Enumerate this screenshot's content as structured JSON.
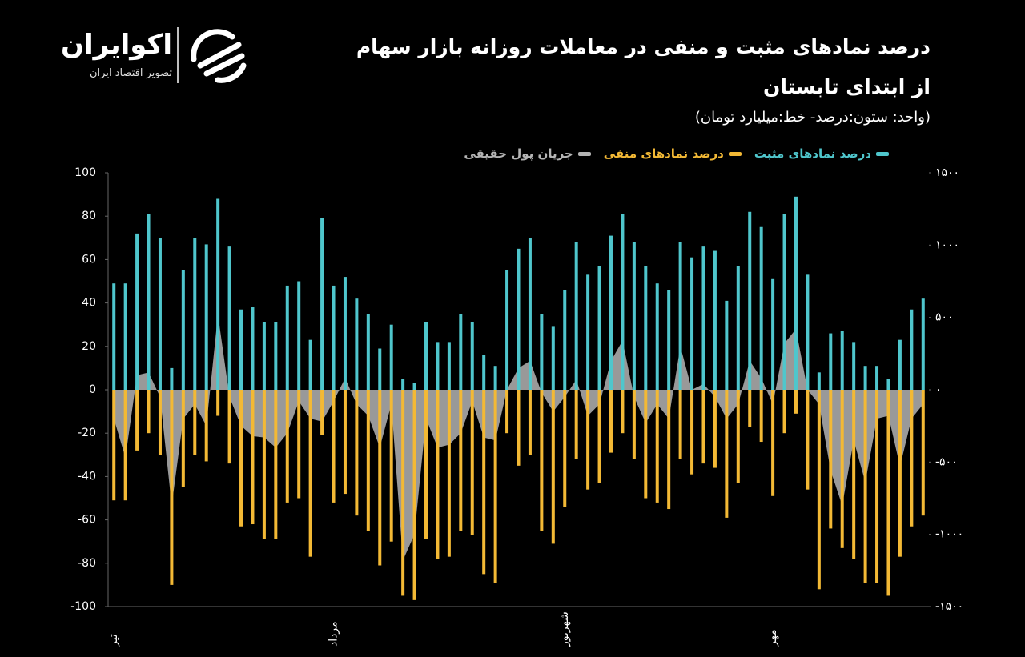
{
  "logo": {
    "name": "اکوایران",
    "tagline": "تصویر اقتصاد ایران"
  },
  "chart_data": {
    "type": "bar",
    "title": [
      "درصد نمادهای مثبت و منفی در معاملات روزانه بازار سهام",
      "از ابتدای تابستان"
    ],
    "subtitle": "(واحد: ستون:درصد- خط:میلیارد تومان)",
    "categories": [
      "تیر",
      null,
      null,
      null,
      null,
      null,
      null,
      null,
      null,
      null,
      null,
      null,
      null,
      null,
      null,
      null,
      null,
      null,
      null,
      "مرداد",
      null,
      null,
      null,
      null,
      null,
      null,
      null,
      null,
      null,
      null,
      null,
      null,
      null,
      null,
      null,
      null,
      null,
      null,
      null,
      "شهریور",
      null,
      null,
      null,
      null,
      null,
      null,
      null,
      null,
      null,
      null,
      null,
      null,
      null,
      null,
      null,
      null,
      null,
      "مهر",
      null,
      null,
      null,
      null,
      null,
      null,
      null,
      null,
      null,
      null,
      null,
      null,
      null
    ],
    "series": [
      {
        "name": "درصد نمادهای مثبت",
        "color": "#4fc6cc",
        "values": [
          49,
          49,
          72,
          81,
          70,
          10,
          55,
          70,
          67,
          88,
          66,
          37,
          38,
          31,
          31,
          48,
          50,
          23,
          79,
          48,
          52,
          42,
          35,
          19,
          30,
          5,
          3,
          31,
          22,
          22,
          35,
          31,
          16,
          11,
          55,
          65,
          70,
          35,
          29,
          46,
          68,
          53,
          57,
          71,
          81,
          68,
          57,
          49,
          46,
          68,
          61,
          66,
          64,
          41,
          57,
          82,
          75,
          51,
          81,
          89,
          53,
          8,
          26,
          27,
          22,
          11,
          11,
          5,
          23,
          37,
          42
        ]
      },
      {
        "name": "درصد نمادهای منفی",
        "color": "#f3b935",
        "values": [
          -51,
          -51,
          -28,
          -20,
          -30,
          -90,
          -45,
          -30,
          -33,
          -12,
          -34,
          -63,
          -62,
          -69,
          -69,
          -52,
          -50,
          -77,
          -21,
          -52,
          -48,
          -58,
          -65,
          -81,
          -70,
          -95,
          -97,
          -69,
          -78,
          -77,
          -65,
          -67,
          -85,
          -89,
          -20,
          -35,
          -30,
          -65,
          -71,
          -54,
          -32,
          -46,
          -43,
          -29,
          -20,
          -32,
          -50,
          -52,
          -55,
          -32,
          -39,
          -34,
          -36,
          -59,
          -43,
          -17,
          -24,
          -49,
          -20,
          -11,
          -46,
          -92,
          -64,
          -73,
          -78,
          -89,
          -89,
          -95,
          -77,
          -63,
          -58
        ]
      },
      {
        "name": "جریان پول حقیقی",
        "color": "#b4b4b4",
        "axis": "y2",
        "values": [
          -200,
          -470,
          100,
          120,
          -50,
          -800,
          -200,
          -100,
          -250,
          520,
          -50,
          -250,
          -320,
          -330,
          -400,
          -300,
          -80,
          -200,
          -220,
          -80,
          80,
          -100,
          -180,
          -400,
          -100,
          -1180,
          -1000,
          -200,
          -400,
          -380,
          -300,
          -80,
          -330,
          -350,
          0,
          150,
          200,
          -20,
          -150,
          -50,
          70,
          -180,
          -100,
          200,
          340,
          -50,
          -230,
          -100,
          -200,
          300,
          0,
          40,
          -50,
          -200,
          -100,
          200,
          80,
          -100,
          320,
          420,
          0,
          -100,
          -560,
          -800,
          -350,
          -640,
          -200,
          -180,
          -530,
          -200,
          -100
        ]
      }
    ],
    "ylim": [
      -100,
      100
    ],
    "yticks": [
      100,
      80,
      60,
      40,
      20,
      0,
      -20,
      -40,
      -60,
      -80,
      -100
    ],
    "y2lim": [
      -1500,
      1500
    ],
    "y2ticks": [
      {
        "value": 1500,
        "label": "۱۵۰۰"
      },
      {
        "value": 1000,
        "label": "۱۰۰۰"
      },
      {
        "value": 500,
        "label": "۵۰۰"
      },
      {
        "value": 0,
        "label": "۰"
      },
      {
        "value": -500,
        "label": "-۵۰۰"
      },
      {
        "value": -1000,
        "label": "-۱۰۰۰"
      },
      {
        "value": -1500,
        "label": "-۱۵۰۰"
      }
    ],
    "grid": false
  }
}
